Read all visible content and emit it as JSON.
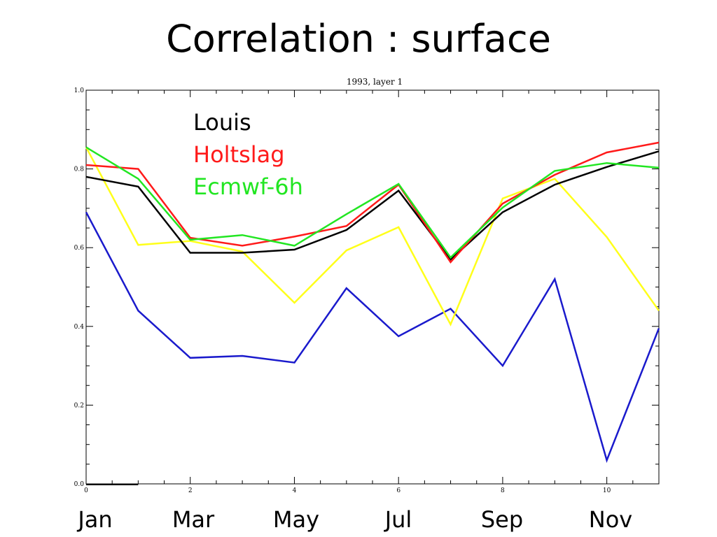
{
  "slide": {
    "title": "Correlation : surface"
  },
  "month_labels": [
    "Jan",
    "Mar",
    "May",
    "Jul",
    "Sep",
    "Nov"
  ],
  "chart_data": {
    "type": "line",
    "title": "1993, layer 1",
    "xlabel": "",
    "ylabel": "",
    "xlim": [
      0,
      11
    ],
    "ylim": [
      0.0,
      1.0
    ],
    "x_ticks": [
      "0",
      "2",
      "4",
      "6",
      "8",
      "10"
    ],
    "y_ticks": [
      "0.0",
      "0.2",
      "0.4",
      "0.6",
      "0.8",
      "1.0"
    ],
    "grid": false,
    "legend_position": "top-center",
    "x": [
      0,
      1,
      2,
      3,
      4,
      5,
      6,
      7,
      8,
      9,
      10,
      11
    ],
    "series": [
      {
        "name": "Louis",
        "color": "#000000",
        "values": [
          0.78,
          0.755,
          0.587,
          0.587,
          0.595,
          0.645,
          0.745,
          0.57,
          0.69,
          0.76,
          0.805,
          0.845
        ]
      },
      {
        "name": "Holtslag",
        "color": "#ff1a1a",
        "values": [
          0.81,
          0.8,
          0.625,
          0.605,
          0.628,
          0.655,
          0.76,
          0.563,
          0.712,
          0.785,
          0.842,
          0.867
        ]
      },
      {
        "name": "Ecmwf-6h",
        "color": "#22e622",
        "values": [
          0.855,
          0.775,
          0.62,
          0.632,
          0.605,
          0.685,
          0.762,
          0.575,
          0.702,
          0.795,
          0.815,
          0.803
        ]
      },
      {
        "name": "",
        "color": "#ffff1a",
        "values": [
          0.855,
          0.607,
          0.617,
          0.59,
          0.46,
          0.593,
          0.652,
          0.405,
          0.725,
          0.775,
          0.627,
          0.44
        ]
      },
      {
        "name": "",
        "color": "#1a1acc",
        "values": [
          0.69,
          0.44,
          0.32,
          0.325,
          0.308,
          0.497,
          0.375,
          0.445,
          0.3,
          0.52,
          0.06,
          0.395
        ]
      }
    ]
  }
}
